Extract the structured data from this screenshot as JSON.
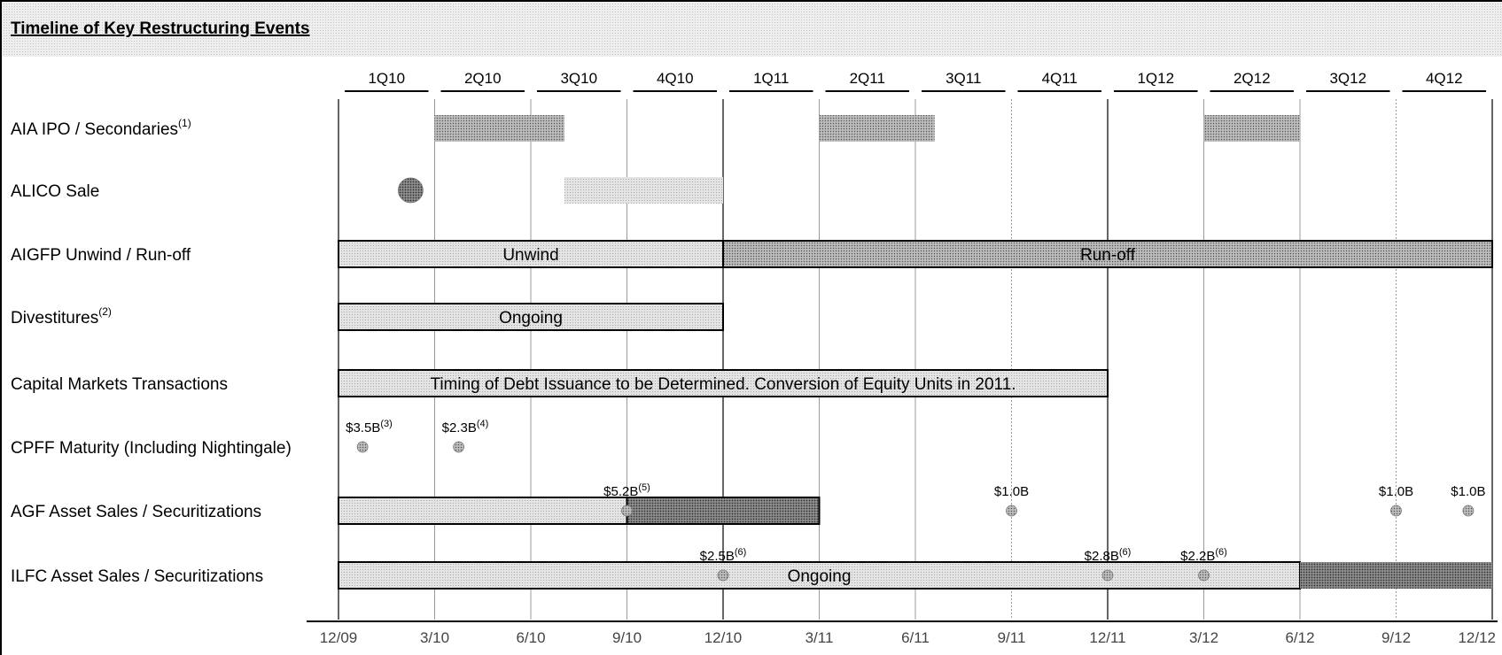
{
  "title": "Timeline of Key Restructuring Events",
  "quarters": [
    "1Q10",
    "2Q10",
    "3Q10",
    "4Q10",
    "1Q11",
    "2Q11",
    "3Q11",
    "4Q11",
    "1Q12",
    "2Q12",
    "3Q12",
    "4Q12"
  ],
  "dates": [
    "12/09",
    "3/10",
    "6/10",
    "9/10",
    "12/10",
    "3/11",
    "6/11",
    "9/11",
    "12/11",
    "3/12",
    "6/12",
    "9/12",
    "12/12"
  ],
  "rows": [
    {
      "label": "AIA IPO / Secondaries",
      "sup": "(1)"
    },
    {
      "label": "ALICO Sale",
      "sup": ""
    },
    {
      "label": "AIGFP Unwind / Run-off",
      "sup": ""
    },
    {
      "label": "Divestitures",
      "sup": "(2)"
    },
    {
      "label": "Capital Markets Transactions",
      "sup": ""
    },
    {
      "label": "CPFF Maturity (Including Nightingale)",
      "sup": ""
    },
    {
      "label": "AGF Asset Sales / Securitizations",
      "sup": ""
    },
    {
      "label": "ILFC Asset Sales / Securitizations",
      "sup": ""
    }
  ],
  "bars": [
    {
      "row": 0,
      "start": 1,
      "end": 2.35,
      "shade": "dark",
      "border": false,
      "label": ""
    },
    {
      "row": 0,
      "start": 5,
      "end": 6.2,
      "shade": "dark",
      "border": false,
      "label": ""
    },
    {
      "row": 0,
      "start": 9,
      "end": 10,
      "shade": "dark",
      "border": false,
      "label": ""
    },
    {
      "row": 1,
      "start": 2.35,
      "end": 4,
      "shade": "light",
      "border": false,
      "label": ""
    },
    {
      "row": 2,
      "start": 0,
      "end": 4,
      "shade": "light",
      "border": true,
      "label": "Unwind"
    },
    {
      "row": 2,
      "start": 4,
      "end": 12,
      "shade": "dark",
      "border": true,
      "label": "Run-off"
    },
    {
      "row": 3,
      "start": 0,
      "end": 4,
      "shade": "light",
      "border": true,
      "label": "Ongoing"
    },
    {
      "row": 4,
      "start": 0,
      "end": 8,
      "shade": "light",
      "border": true,
      "label": "Timing of Debt Issuance to be Determined.  Conversion of Equity Units in 2011."
    },
    {
      "row": 6,
      "start": 0,
      "end": 3,
      "shade": "light",
      "border": true,
      "label": ""
    },
    {
      "row": 6,
      "start": 3,
      "end": 5,
      "shade": "darker",
      "border": true,
      "label": ""
    },
    {
      "row": 7,
      "start": 0,
      "end": 10,
      "shade": "light",
      "border": true,
      "label": "Ongoing"
    },
    {
      "row": 7,
      "start": 10,
      "end": 12,
      "shade": "darker",
      "border": false,
      "label": ""
    }
  ],
  "markers": [
    {
      "row": 1,
      "t": 0.75,
      "size": "large",
      "label": "",
      "sup": ""
    },
    {
      "row": 5,
      "t": 0.25,
      "size": "small",
      "label": "$3.5B",
      "sup": "(3)"
    },
    {
      "row": 5,
      "t": 1.25,
      "size": "small",
      "label": "$2.3B",
      "sup": "(4)"
    },
    {
      "row": 6,
      "t": 3.0,
      "size": "small",
      "label": "$5.2B",
      "sup": "(5)"
    },
    {
      "row": 6,
      "t": 7.0,
      "size": "small",
      "label": "$1.0B",
      "sup": ""
    },
    {
      "row": 6,
      "t": 11.0,
      "size": "small",
      "label": "$1.0B",
      "sup": ""
    },
    {
      "row": 6,
      "t": 11.75,
      "size": "small",
      "label": "$1.0B",
      "sup": ""
    },
    {
      "row": 7,
      "t": 4.0,
      "size": "small",
      "label": "$2.5B",
      "sup": "(6)"
    },
    {
      "row": 7,
      "t": 8.0,
      "size": "small",
      "label": "$2.8B",
      "sup": "(6)"
    },
    {
      "row": 7,
      "t": 9.0,
      "size": "small",
      "label": "$2.2B",
      "sup": "(6)"
    }
  ],
  "colors": {
    "light": "#e4e4e4",
    "dark": "#bdbdbd",
    "darker": "#8e8e8e",
    "line": "#000000",
    "title_bg": "#eeeeee"
  }
}
